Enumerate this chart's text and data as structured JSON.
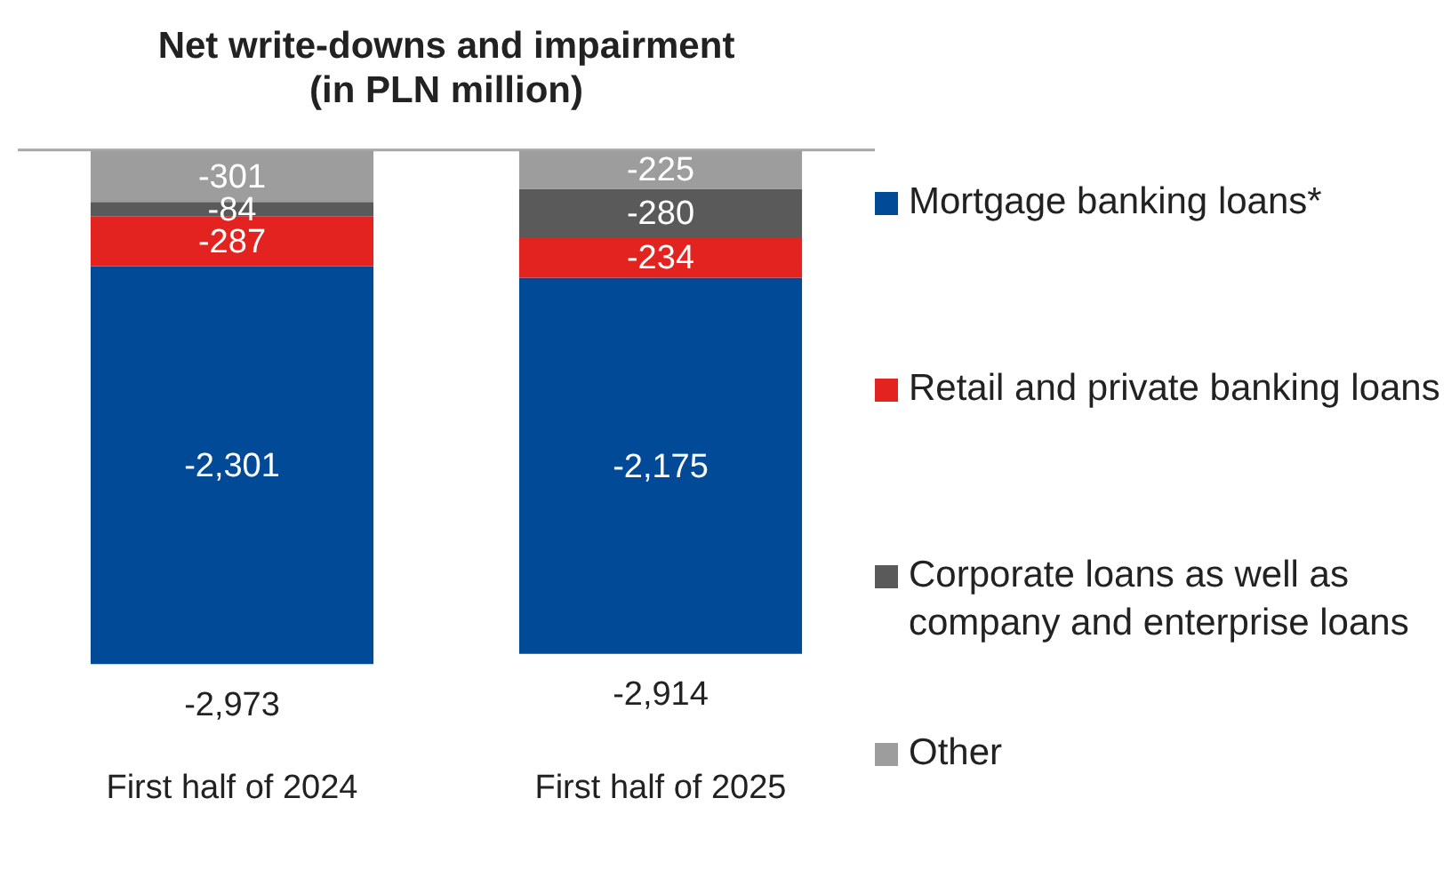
{
  "chart_data": {
    "type": "bar",
    "title": "Net write-downs and impairment\n(in PLN million)",
    "categories": [
      "First half of 2024",
      "First half of 2025"
    ],
    "stacked": true,
    "series": [
      {
        "name": "Other",
        "color": "#9d9d9d",
        "values": [
          -301,
          -225
        ],
        "value_labels": [
          "-301",
          "-225"
        ]
      },
      {
        "name": "Corporate loans as well as company and enterprise loans",
        "color": "#5a5a5a",
        "values": [
          -84,
          -280
        ],
        "value_labels": [
          "-84",
          "-280"
        ]
      },
      {
        "name": "Retail and private banking loans",
        "color": "#e3231f",
        "values": [
          -287,
          -234
        ],
        "value_labels": [
          "-287",
          "-234"
        ]
      },
      {
        "name": "Mortgage banking loans*",
        "color": "#004a98",
        "values": [
          -2301,
          -2175
        ],
        "value_labels": [
          "-2,301",
          "-2,175"
        ]
      }
    ],
    "totals": [
      "-2,973",
      "-2,914"
    ],
    "legend": "right",
    "grid": false
  }
}
